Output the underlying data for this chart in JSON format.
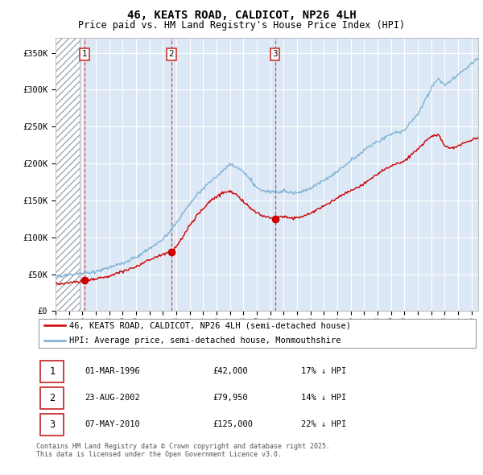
{
  "title": "46, KEATS ROAD, CALDICOT, NP26 4LH",
  "subtitle": "Price paid vs. HM Land Registry's House Price Index (HPI)",
  "ylim": [
    0,
    370000
  ],
  "yticks": [
    0,
    50000,
    100000,
    150000,
    200000,
    250000,
    300000,
    350000
  ],
  "ytick_labels": [
    "£0",
    "£50K",
    "£100K",
    "£150K",
    "£200K",
    "£250K",
    "£300K",
    "£350K"
  ],
  "xmin": 1994,
  "xmax": 2025.5,
  "transactions": [
    {
      "date_num": 1996.17,
      "price": 42000,
      "label": "1"
    },
    {
      "date_num": 2002.64,
      "price": 79950,
      "label": "2"
    },
    {
      "date_num": 2010.35,
      "price": 125000,
      "label": "3"
    }
  ],
  "transaction_info": [
    {
      "label": "1",
      "date": "01-MAR-1996",
      "price": "£42,000",
      "hpi": "17% ↓ HPI"
    },
    {
      "label": "2",
      "date": "23-AUG-2002",
      "price": "£79,950",
      "hpi": "14% ↓ HPI"
    },
    {
      "label": "3",
      "date": "07-MAY-2010",
      "price": "£125,000",
      "hpi": "22% ↓ HPI"
    }
  ],
  "legend_entries": [
    "46, KEATS ROAD, CALDICOT, NP26 4LH (semi-detached house)",
    "HPI: Average price, semi-detached house, Monmouthshire"
  ],
  "footer": "Contains HM Land Registry data © Crown copyright and database right 2025.\nThis data is licensed under the Open Government Licence v3.0.",
  "house_color": "#cc0000",
  "hpi_color": "#7aafd4",
  "plot_bg_color": "#dce8f5",
  "hatch_color": "#c0c8d8",
  "title_fontsize": 10,
  "subtitle_fontsize": 8.5,
  "axis_fontsize": 7.5,
  "legend_fontsize": 7.5,
  "table_fontsize": 7.5,
  "footer_fontsize": 6
}
